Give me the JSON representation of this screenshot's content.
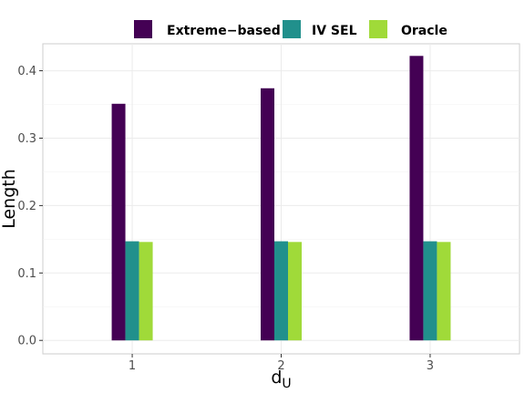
{
  "chart_data": {
    "type": "bar",
    "title": "",
    "xlabel": "d",
    "xlabel_subscript": "U",
    "ylabel": "Length",
    "categories": [
      "1",
      "2",
      "3"
    ],
    "series": [
      {
        "name": "Extreme−based",
        "color": "#440154",
        "values": [
          0.351,
          0.374,
          0.422
        ]
      },
      {
        "name": "IV SEL",
        "color": "#21908C",
        "values": [
          0.147,
          0.147,
          0.147
        ]
      },
      {
        "name": "Oracle",
        "color": "#A0DA39",
        "values": [
          0.146,
          0.146,
          0.146
        ]
      }
    ],
    "ylim": [
      -0.02,
      0.44
    ],
    "yticks": [
      0.0,
      0.1,
      0.2,
      0.3,
      0.4
    ],
    "ytick_labels": [
      "0.0",
      "0.1",
      "0.2",
      "0.3",
      "0.4"
    ],
    "grid": true,
    "legend_position": "top"
  }
}
